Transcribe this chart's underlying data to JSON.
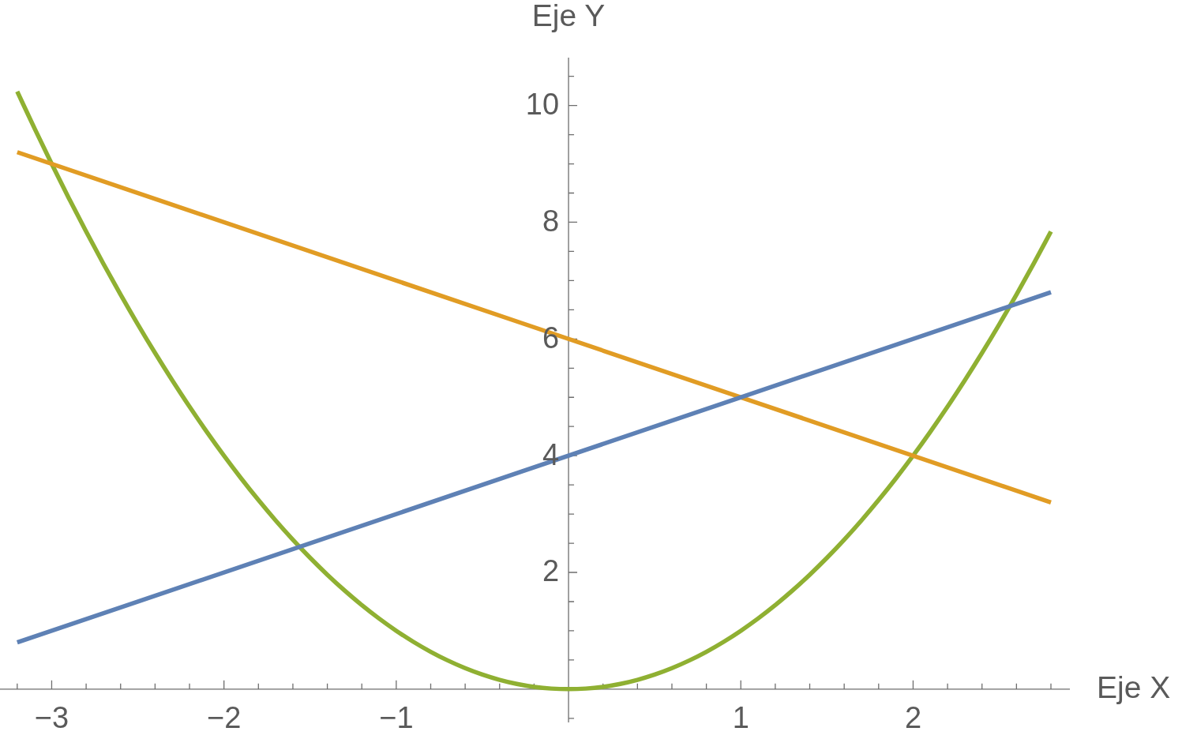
{
  "chart_data": {
    "type": "line",
    "xlabel": "Eje X",
    "ylabel": "Eje Y",
    "xlim": [
      -3.3,
      2.91
    ],
    "ylim": [
      -0.57,
      10.82
    ],
    "xticks": [
      {
        "value": -3.2,
        "label": null
      },
      {
        "value": -3,
        "label": "−3"
      },
      {
        "value": -2.8,
        "label": null
      },
      {
        "value": -2.6,
        "label": null
      },
      {
        "value": -2.4,
        "label": null
      },
      {
        "value": -2.2,
        "label": null
      },
      {
        "value": -2,
        "label": "−2"
      },
      {
        "value": -1.8,
        "label": null
      },
      {
        "value": -1.6,
        "label": null
      },
      {
        "value": -1.4,
        "label": null
      },
      {
        "value": -1.2,
        "label": null
      },
      {
        "value": -1,
        "label": "−1"
      },
      {
        "value": -0.8,
        "label": null
      },
      {
        "value": -0.6,
        "label": null
      },
      {
        "value": -0.4,
        "label": null
      },
      {
        "value": -0.2,
        "label": null
      },
      {
        "value": 0.2,
        "label": null
      },
      {
        "value": 0.4,
        "label": null
      },
      {
        "value": 0.6,
        "label": null
      },
      {
        "value": 0.8,
        "label": null
      },
      1,
      {
        "value": 1.2,
        "label": null
      },
      {
        "value": 1.4,
        "label": null
      },
      {
        "value": 1.6,
        "label": null
      },
      {
        "value": 1.8,
        "label": null
      },
      2,
      {
        "value": 2.2,
        "label": null
      },
      {
        "value": 2.4,
        "label": null
      },
      {
        "value": 2.6,
        "label": null
      },
      {
        "value": 2.8,
        "label": null
      }
    ],
    "yticks": [
      {
        "value": -0.5,
        "label": null
      },
      {
        "value": 0.5,
        "label": null
      },
      {
        "value": 1,
        "label": null
      },
      {
        "value": 1.5,
        "label": null
      },
      2,
      {
        "value": 2.5,
        "label": null
      },
      {
        "value": 3,
        "label": null
      },
      {
        "value": 3.5,
        "label": null
      },
      4,
      {
        "value": 4.5,
        "label": null
      },
      {
        "value": 5,
        "label": null
      },
      {
        "value": 5.5,
        "label": null
      },
      6,
      {
        "value": 6.5,
        "label": null
      },
      {
        "value": 7,
        "label": null
      },
      {
        "value": 7.5,
        "label": null
      },
      8,
      {
        "value": 8.5,
        "label": null
      },
      {
        "value": 9,
        "label": null
      },
      {
        "value": 9.5,
        "label": null
      },
      10,
      {
        "value": 10.5,
        "label": null
      }
    ],
    "series": [
      {
        "color": "#5e81b5",
        "x": [
          -3.2,
          2.8
        ],
        "values": [
          0.8,
          6.8
        ]
      },
      {
        "color": "#e19c24",
        "x": [
          -3.2,
          2.8
        ],
        "values": [
          9.2,
          3.2
        ]
      },
      {
        "color": "#8fb032",
        "x": [
          -3.2,
          -3.1,
          -3,
          -2.9,
          -2.8,
          -2.7,
          -2.6,
          -2.5,
          -2.4,
          -2.3,
          -2.2,
          -2.1,
          -2,
          -1.9,
          -1.8,
          -1.7,
          -1.6,
          -1.5,
          -1.4,
          -1.3,
          -1.2,
          -1.1,
          -1,
          -0.9,
          -0.8,
          -0.7,
          -0.6,
          -0.5,
          -0.4,
          -0.3,
          -0.2,
          -0.1,
          0,
          0.1,
          0.2,
          0.3,
          0.4,
          0.5,
          0.6,
          0.7,
          0.8,
          0.9,
          1,
          1.1,
          1.2,
          1.3,
          1.4,
          1.5,
          1.6,
          1.7,
          1.8,
          1.9,
          2,
          2.1,
          2.2,
          2.3,
          2.4,
          2.5,
          2.6,
          2.7,
          2.8
        ],
        "values": [
          10.24,
          9.61,
          9,
          8.41,
          7.84,
          7.29,
          6.76,
          6.25,
          5.76,
          5.29,
          4.84,
          4.41,
          4,
          3.61,
          3.24,
          2.89,
          2.56,
          2.25,
          1.96,
          1.69,
          1.44,
          1.21,
          1,
          0.81,
          0.64,
          0.49,
          0.36,
          0.25,
          0.16,
          0.09,
          0.04,
          0.01,
          0,
          0.01,
          0.04,
          0.09,
          0.16,
          0.25,
          0.36,
          0.49,
          0.64,
          0.81,
          1,
          1.21,
          1.44,
          1.69,
          1.96,
          2.25,
          2.56,
          2.89,
          3.24,
          3.61,
          4,
          4.41,
          4.84,
          5.29,
          5.76,
          6.25,
          6.76,
          7.29,
          7.84
        ]
      }
    ]
  }
}
